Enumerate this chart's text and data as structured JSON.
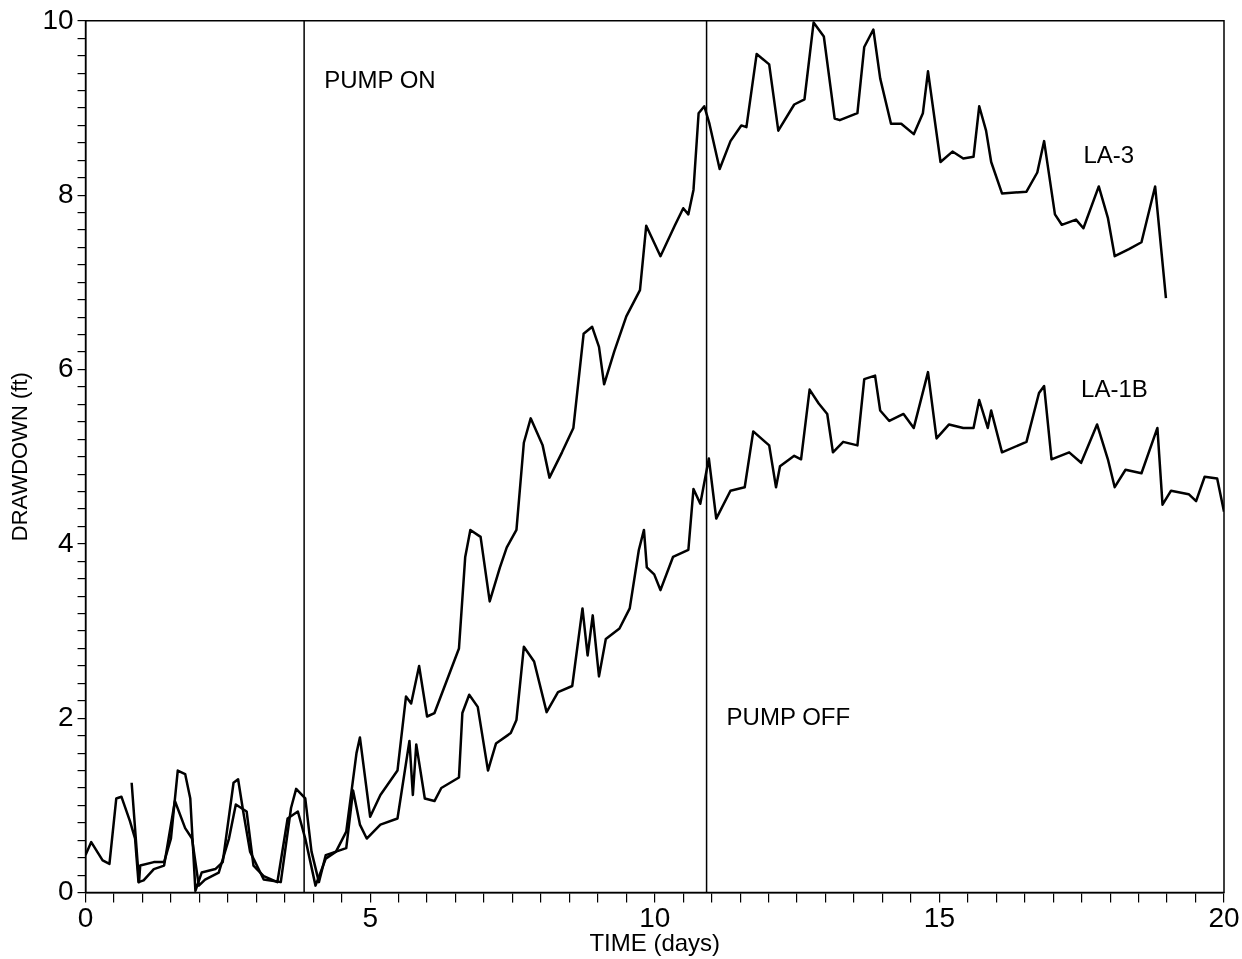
{
  "chart_data": {
    "type": "line",
    "xlabel": "TIME (days)",
    "ylabel": "DRAWDOWN (ft)",
    "xlim": [
      0,
      20
    ],
    "ylim": [
      0,
      10
    ],
    "xticks": [
      0,
      {
        "value": 0.5,
        "label": null
      },
      {
        "value": 1,
        "label": null
      },
      {
        "value": 1.5,
        "label": null
      },
      {
        "value": 2,
        "label": null
      },
      {
        "value": 2.5,
        "label": null
      },
      {
        "value": 3,
        "label": null
      },
      {
        "value": 3.5,
        "label": null
      },
      {
        "value": 4,
        "label": null
      },
      {
        "value": 4.5,
        "label": null
      },
      5,
      {
        "value": 5.5,
        "label": null
      },
      {
        "value": 6,
        "label": null
      },
      {
        "value": 6.5,
        "label": null
      },
      {
        "value": 7,
        "label": null
      },
      {
        "value": 7.5,
        "label": null
      },
      {
        "value": 8,
        "label": null
      },
      {
        "value": 8.5,
        "label": null
      },
      {
        "value": 9,
        "label": null
      },
      {
        "value": 9.5,
        "label": null
      },
      10,
      {
        "value": 10.5,
        "label": null
      },
      {
        "value": 11,
        "label": null
      },
      {
        "value": 11.5,
        "label": null
      },
      {
        "value": 12,
        "label": null
      },
      {
        "value": 12.5,
        "label": null
      },
      {
        "value": 13,
        "label": null
      },
      {
        "value": 13.5,
        "label": null
      },
      {
        "value": 14,
        "label": null
      },
      {
        "value": 14.5,
        "label": null
      },
      15,
      {
        "value": 15.5,
        "label": null
      },
      {
        "value": 16,
        "label": null
      },
      {
        "value": 16.5,
        "label": null
      },
      {
        "value": 17,
        "label": null
      },
      {
        "value": 17.5,
        "label": null
      },
      {
        "value": 18,
        "label": null
      },
      {
        "value": 18.5,
        "label": null
      },
      {
        "value": 19,
        "label": null
      },
      {
        "value": 19.5,
        "label": null
      },
      20
    ],
    "yticks": [
      0,
      {
        "value": 0.2,
        "label": null
      },
      {
        "value": 0.4,
        "label": null
      },
      {
        "value": 0.6,
        "label": null
      },
      {
        "value": 0.8,
        "label": null
      },
      {
        "value": 1,
        "label": null
      },
      {
        "value": 1.2,
        "label": null
      },
      {
        "value": 1.4,
        "label": null
      },
      {
        "value": 1.6,
        "label": null
      },
      {
        "value": 1.8,
        "label": null
      },
      2,
      {
        "value": 2.2,
        "label": null
      },
      {
        "value": 2.4,
        "label": null
      },
      {
        "value": 2.6,
        "label": null
      },
      {
        "value": 2.8,
        "label": null
      },
      {
        "value": 3,
        "label": null
      },
      {
        "value": 3.2,
        "label": null
      },
      {
        "value": 3.4,
        "label": null
      },
      {
        "value": 3.6,
        "label": null
      },
      {
        "value": 3.8,
        "label": null
      },
      4,
      {
        "value": 4.2,
        "label": null
      },
      {
        "value": 4.4,
        "label": null
      },
      {
        "value": 4.6,
        "label": null
      },
      {
        "value": 4.8,
        "label": null
      },
      {
        "value": 5,
        "label": null
      },
      {
        "value": 5.2,
        "label": null
      },
      {
        "value": 5.4,
        "label": null
      },
      {
        "value": 5.6,
        "label": null
      },
      {
        "value": 5.8,
        "label": null
      },
      6,
      {
        "value": 6.2,
        "label": null
      },
      {
        "value": 6.4,
        "label": null
      },
      {
        "value": 6.6,
        "label": null
      },
      {
        "value": 6.8,
        "label": null
      },
      {
        "value": 7,
        "label": null
      },
      {
        "value": 7.2,
        "label": null
      },
      {
        "value": 7.4,
        "label": null
      },
      {
        "value": 7.6,
        "label": null
      },
      {
        "value": 7.8,
        "label": null
      },
      8,
      {
        "value": 8.2,
        "label": null
      },
      {
        "value": 8.4,
        "label": null
      },
      {
        "value": 8.6,
        "label": null
      },
      {
        "value": 8.8,
        "label": null
      },
      {
        "value": 9,
        "label": null
      },
      {
        "value": 9.2,
        "label": null
      },
      {
        "value": 9.4,
        "label": null
      },
      {
        "value": 9.6,
        "label": null
      },
      {
        "value": 9.8,
        "label": null
      },
      10
    ],
    "grid": false,
    "legend": false,
    "marker": "none",
    "line_style": "solid",
    "ref_lines": [
      {
        "axis": "x",
        "value": 3.84,
        "label": "PUMP ON",
        "color": "#000000"
      },
      {
        "axis": "x",
        "value": 10.91,
        "label": "PUMP OFF",
        "color": "#000000"
      }
    ],
    "series": [
      {
        "name": "LA-3",
        "color": "#000000",
        "x": [
          0.81,
          0.94,
          0.96,
          1.2,
          1.38,
          1.5,
          1.62,
          1.75,
          1.84,
          1.93,
          2.04,
          2.28,
          2.41,
          2.6,
          2.68,
          2.77,
          2.89,
          3.13,
          3.43,
          3.61,
          3.7,
          3.86,
          3.97,
          4.1,
          4.22,
          4.4,
          4.58,
          4.76,
          4.82,
          5.0,
          5.18,
          5.48,
          5.63,
          5.72,
          5.86,
          6.0,
          6.13,
          6.38,
          6.56,
          6.67,
          6.76,
          6.94,
          7.1,
          7.28,
          7.4,
          7.57,
          7.7,
          7.82,
          8.03,
          8.15,
          8.37,
          8.57,
          8.75,
          8.9,
          9.02,
          9.11,
          9.29,
          9.5,
          9.74,
          9.85,
          10.1,
          10.35,
          10.5,
          10.59,
          10.68,
          10.77,
          10.87,
          10.96,
          11.14,
          11.33,
          11.52,
          11.61,
          11.79,
          12.01,
          12.17,
          12.45,
          12.63,
          12.79,
          12.97,
          13.16,
          13.25,
          13.56,
          13.68,
          13.84,
          13.96,
          14.15,
          14.33,
          14.55,
          14.71,
          14.8,
          15.02,
          15.23,
          15.42,
          15.6,
          15.7,
          15.82,
          15.91,
          16.1,
          16.53,
          16.72,
          16.84,
          17.03,
          17.15,
          17.4,
          17.53,
          17.8,
          17.96,
          18.08,
          18.33,
          18.55,
          18.79,
          18.98
        ],
        "values": [
          1.26,
          0.12,
          0.31,
          0.35,
          0.35,
          0.62,
          1.4,
          1.36,
          1.08,
          0.02,
          0.23,
          0.27,
          0.35,
          1.26,
          1.3,
          0.93,
          0.47,
          0.15,
          0.12,
          0.97,
          1.19,
          1.08,
          0.47,
          0.12,
          0.43,
          0.47,
          0.7,
          1.6,
          1.78,
          0.87,
          1.12,
          1.4,
          2.25,
          2.17,
          2.6,
          2.02,
          2.06,
          2.49,
          2.8,
          3.85,
          4.16,
          4.08,
          3.34,
          3.73,
          3.96,
          4.16,
          5.16,
          5.44,
          5.13,
          4.76,
          5.05,
          5.33,
          6.41,
          6.49,
          6.26,
          5.83,
          6.21,
          6.61,
          6.91,
          7.65,
          7.3,
          7.65,
          7.85,
          7.78,
          8.06,
          8.94,
          9.02,
          8.82,
          8.3,
          8.62,
          8.8,
          8.78,
          9.62,
          9.5,
          8.74,
          9.04,
          9.1,
          9.98,
          9.82,
          8.88,
          8.86,
          8.94,
          9.7,
          9.9,
          9.34,
          8.82,
          8.82,
          8.7,
          8.94,
          9.42,
          8.38,
          8.5,
          8.42,
          8.44,
          9.02,
          8.74,
          8.38,
          8.02,
          8.04,
          8.26,
          8.62,
          7.78,
          7.66,
          7.72,
          7.62,
          8.1,
          7.74,
          7.3,
          7.38,
          7.46,
          8.1,
          6.82
        ]
      },
      {
        "name": "LA-1B",
        "color": "#000000",
        "x": [
          0,
          0.1,
          0.3,
          0.42,
          0.54,
          0.63,
          0.78,
          0.87,
          0.93,
          1.02,
          1.2,
          1.38,
          1.57,
          1.75,
          1.87,
          1.99,
          2.1,
          2.34,
          2.52,
          2.64,
          2.83,
          2.95,
          3.13,
          3.37,
          3.55,
          3.73,
          3.86,
          4.04,
          4.22,
          4.4,
          4.58,
          4.7,
          4.82,
          4.94,
          5.18,
          5.48,
          5.69,
          5.75,
          5.81,
          5.96,
          6.13,
          6.25,
          6.56,
          6.62,
          6.74,
          6.89,
          7.07,
          7.21,
          7.47,
          7.57,
          7.7,
          7.88,
          8.1,
          8.3,
          8.55,
          8.73,
          8.82,
          8.91,
          9.02,
          9.14,
          9.38,
          9.56,
          9.72,
          9.81,
          9.86,
          9.99,
          10.1,
          10.32,
          10.59,
          10.68,
          10.8,
          10.95,
          11.08,
          11.33,
          11.58,
          11.73,
          12.01,
          12.13,
          12.2,
          12.45,
          12.57,
          12.72,
          12.88,
          13.03,
          13.13,
          13.31,
          13.56,
          13.68,
          13.87,
          13.96,
          14.12,
          14.37,
          14.55,
          14.8,
          14.95,
          15.17,
          15.42,
          15.6,
          15.7,
          15.85,
          15.91,
          16.1,
          16.53,
          16.75,
          16.84,
          16.97,
          17.28,
          17.49,
          17.77,
          17.96,
          18.08,
          18.27,
          18.55,
          18.83,
          18.92,
          19.07,
          19.38,
          19.51,
          19.66,
          19.88,
          20
        ],
        "values": [
          0.43,
          0.58,
          0.37,
          0.33,
          1.08,
          1.1,
          0.82,
          0.62,
          0.12,
          0.14,
          0.27,
          0.31,
          1.05,
          0.74,
          0.62,
          0.08,
          0.15,
          0.23,
          0.62,
          1.01,
          0.93,
          0.31,
          0.19,
          0.12,
          0.85,
          0.93,
          0.62,
          0.08,
          0.39,
          0.47,
          0.51,
          1.17,
          0.78,
          0.62,
          0.78,
          0.85,
          1.74,
          1.12,
          1.7,
          1.08,
          1.05,
          1.2,
          1.32,
          2.06,
          2.27,
          2.13,
          1.4,
          1.71,
          1.83,
          1.98,
          2.82,
          2.65,
          2.07,
          2.3,
          2.37,
          3.26,
          2.72,
          3.18,
          2.48,
          2.91,
          3.03,
          3.26,
          3.93,
          4.16,
          3.73,
          3.65,
          3.47,
          3.85,
          3.93,
          4.63,
          4.46,
          4.98,
          4.29,
          4.61,
          4.65,
          5.29,
          5.13,
          4.65,
          4.89,
          5.01,
          4.97,
          5.77,
          5.61,
          5.49,
          5.05,
          5.17,
          5.13,
          5.89,
          5.93,
          5.53,
          5.41,
          5.49,
          5.33,
          5.97,
          5.21,
          5.37,
          5.33,
          5.33,
          5.65,
          5.33,
          5.53,
          5.05,
          5.17,
          5.73,
          5.81,
          4.97,
          5.05,
          4.93,
          5.37,
          4.97,
          4.65,
          4.85,
          4.81,
          5.33,
          4.45,
          4.61,
          4.57,
          4.49,
          4.77,
          4.75,
          4.37
        ]
      }
    ]
  }
}
